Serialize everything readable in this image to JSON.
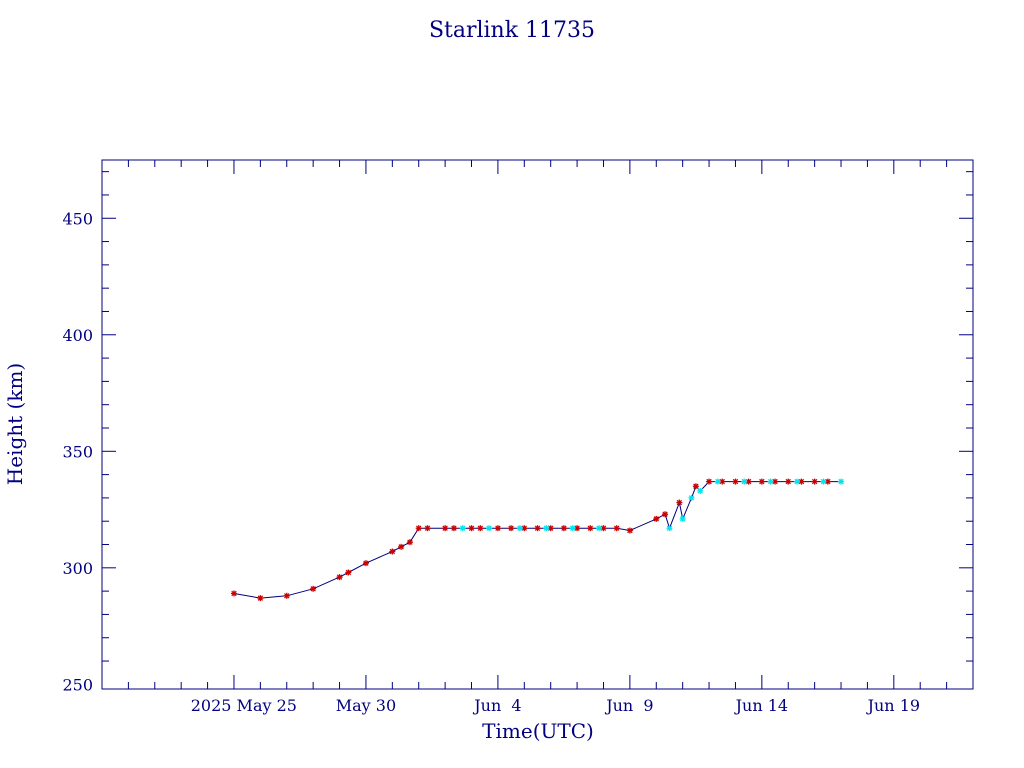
{
  "chart_data": {
    "type": "line",
    "title": "Starlink 11735",
    "xlabel": "Time(UTC)",
    "ylabel": "Height (km)",
    "x_tick_labels": [
      "2025 May 25",
      "May 30",
      "Jun  4",
      "Jun  9",
      "Jun 14",
      "Jun 19"
    ],
    "y_tick_labels": [
      "250",
      "300",
      "350",
      "400",
      "450"
    ],
    "y_ticks": [
      250,
      300,
      350,
      400,
      450
    ],
    "ylim": [
      248,
      475
    ],
    "xlim": [
      "2025-05-20T00:00",
      "2025-06-22T00:00"
    ],
    "x_ticks": [
      "2025-05-25",
      "2025-05-30",
      "2025-06-04",
      "2025-06-09",
      "2025-06-14",
      "2025-06-19"
    ],
    "grid": false,
    "colors": {
      "axis": "#000080",
      "line": "#000080",
      "marker_primary": "#cc0000",
      "marker_secondary": "#00e5ee"
    },
    "series": [
      {
        "marker": "red-star",
        "x": [
          "2025-05-25T00:00",
          "2025-05-26T00:00",
          "2025-05-27T00:00",
          "2025-05-28T00:00",
          "2025-05-29T00:00",
          "2025-05-29T08:00",
          "2025-05-30T00:00",
          "2025-05-31T00:00",
          "2025-05-31T08:00",
          "2025-05-31T16:00",
          "2025-06-01T00:00",
          "2025-06-01T08:00",
          "2025-06-02T00:00",
          "2025-06-02T08:00",
          "2025-06-03T00:00",
          "2025-06-03T08:00",
          "2025-06-04T00:00",
          "2025-06-04T12:00",
          "2025-06-05T00:00",
          "2025-06-05T12:00",
          "2025-06-06T00:00",
          "2025-06-06T12:00",
          "2025-06-07T00:00",
          "2025-06-07T12:00",
          "2025-06-08T00:00",
          "2025-06-08T12:00",
          "2025-06-09T00:00",
          "2025-06-10T00:00",
          "2025-06-10T08:00",
          "2025-06-10T21:00",
          "2025-06-11T12:00",
          "2025-06-12T00:00",
          "2025-06-12T12:00",
          "2025-06-13T00:00",
          "2025-06-13T12:00",
          "2025-06-14T00:00",
          "2025-06-14T12:00",
          "2025-06-15T00:00",
          "2025-06-15T12:00",
          "2025-06-16T00:00",
          "2025-06-16T12:00"
        ],
        "y": [
          289,
          287,
          288,
          291,
          296,
          298,
          302,
          307,
          309,
          311,
          317,
          317,
          317,
          317,
          317,
          317,
          317,
          317,
          317,
          317,
          317,
          317,
          317,
          317,
          317,
          317,
          316,
          321,
          323,
          328,
          335,
          337,
          337,
          337,
          337,
          337,
          337,
          337,
          337,
          337,
          337
        ]
      },
      {
        "marker": "cyan-star",
        "x": [
          "2025-06-02T16:00",
          "2025-06-03T16:00",
          "2025-06-04T20:00",
          "2025-06-05T20:00",
          "2025-06-06T20:00",
          "2025-06-07T20:00",
          "2025-06-10T12:00",
          "2025-06-11T00:00",
          "2025-06-11T08:00",
          "2025-06-11T16:00",
          "2025-06-12T08:00",
          "2025-06-13T08:00",
          "2025-06-14T08:00",
          "2025-06-15T08:00",
          "2025-06-16T08:00",
          "2025-06-17T00:00"
        ],
        "y": [
          317,
          317,
          317,
          317,
          317,
          317,
          317,
          321,
          330,
          333,
          337,
          337,
          337,
          337,
          337,
          337
        ]
      }
    ]
  }
}
